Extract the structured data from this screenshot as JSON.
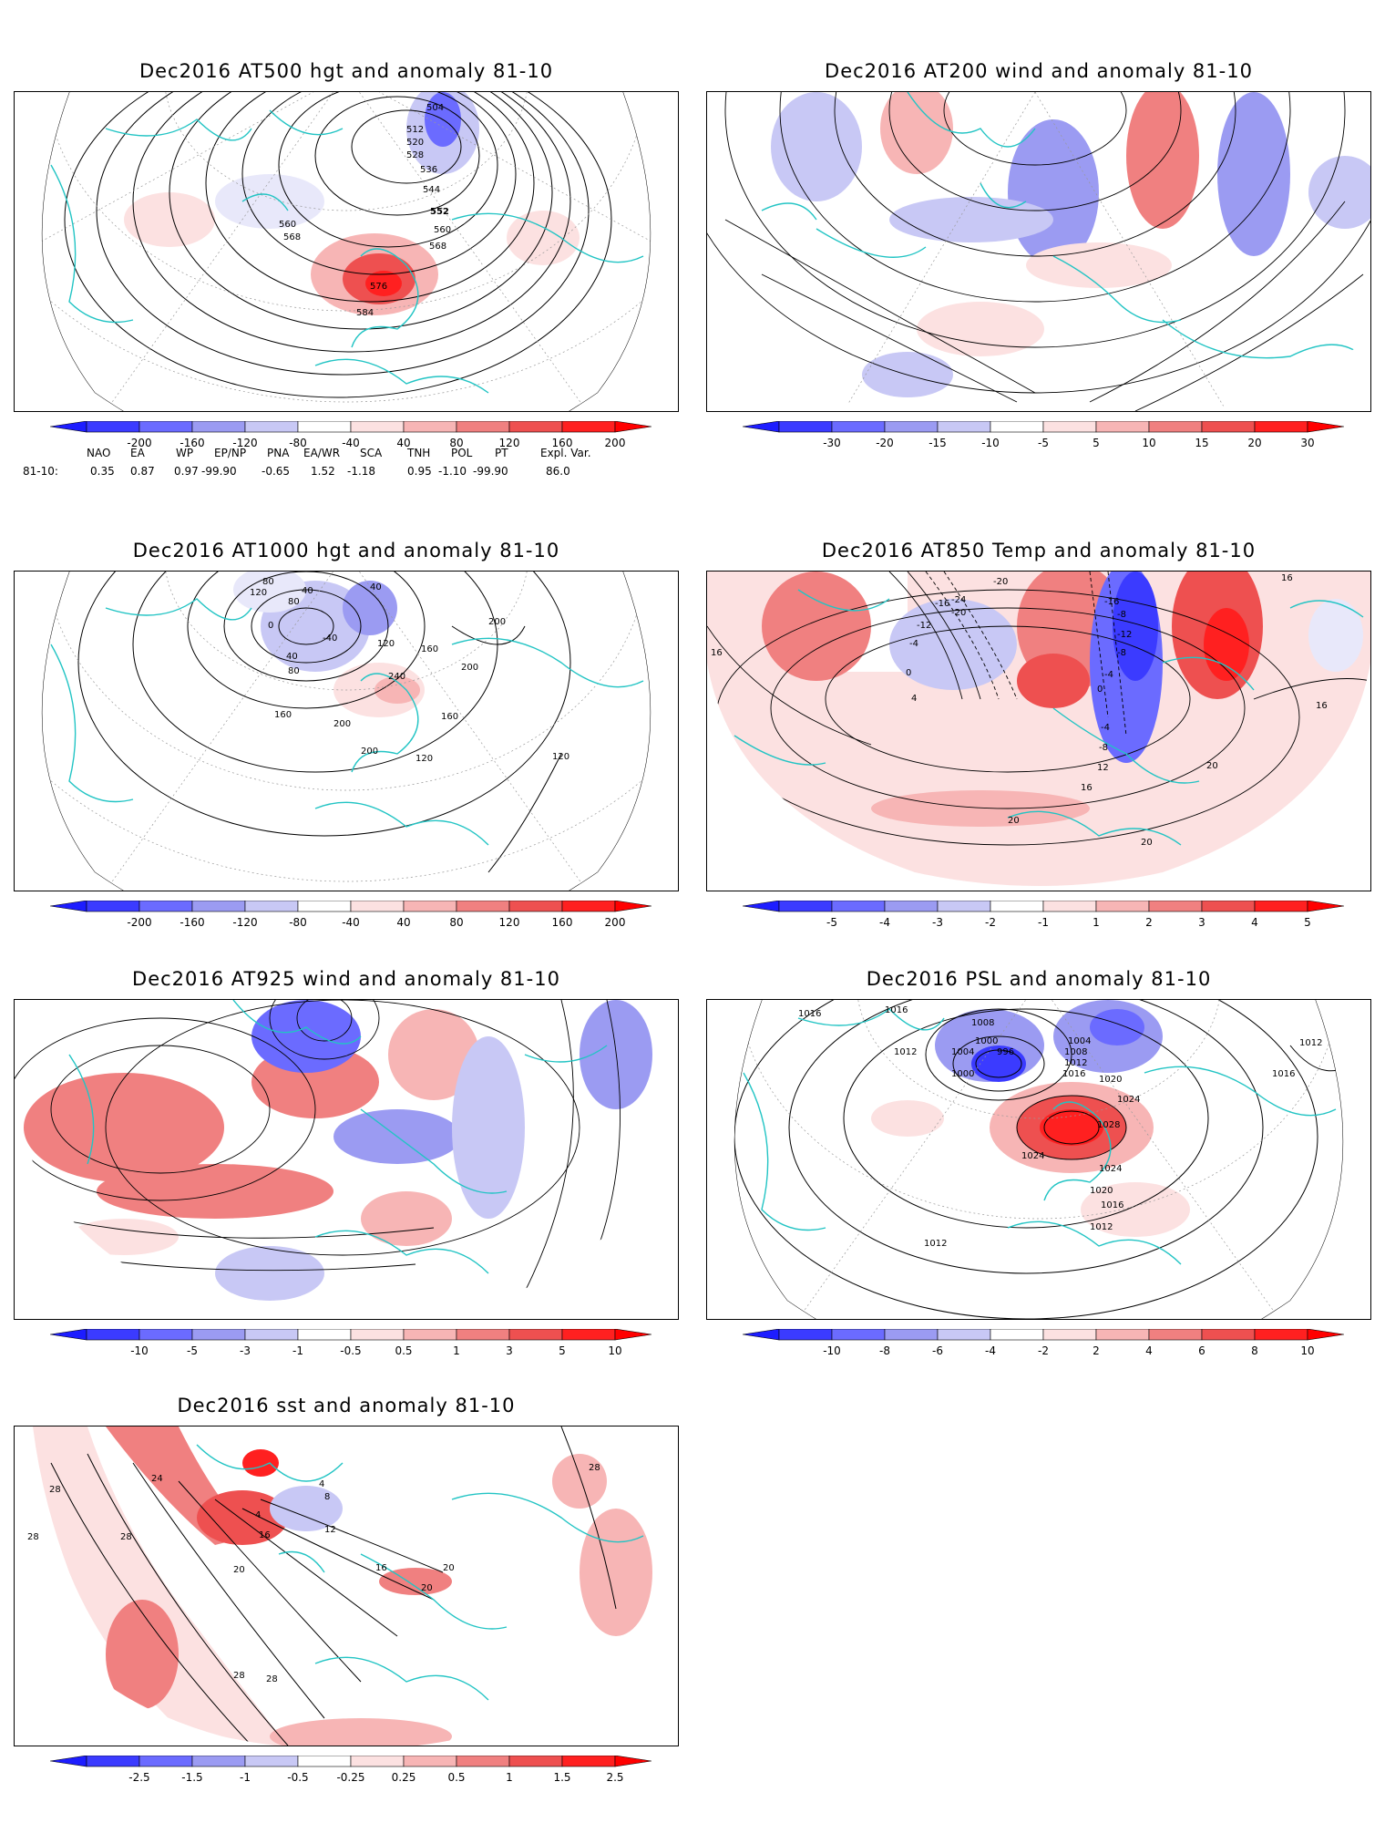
{
  "panels": [
    {
      "id": "p1",
      "title": "Dec2016 AT500 hgt and anomaly 81-10",
      "contour_labels": [
        "504",
        "512",
        "520",
        "528",
        "536",
        "544",
        "552",
        "560",
        "568",
        "560",
        "568",
        "576",
        "584"
      ],
      "colorbar": {
        "ticks": [
          "-200",
          "-160",
          "-120",
          "-80",
          "-40",
          "40",
          "80",
          "120",
          "160",
          "200"
        ]
      },
      "anomaly_palette": [
        "#3b3bff",
        "#6b6bff",
        "#9b9bf2",
        "#c8c8f5",
        "#e8e8fa",
        "#ffffff",
        "#fce1e1",
        "#f7b5b5",
        "#f08080",
        "#ee5050",
        "#ff2020"
      ]
    },
    {
      "id": "p2",
      "title": "Dec2016 AT200 wind and anomaly 81-10",
      "contour_labels": [],
      "colorbar": {
        "ticks": [
          "-30",
          "-20",
          "-15",
          "-10",
          "-5",
          "5",
          "10",
          "15",
          "20",
          "30"
        ]
      }
    },
    {
      "id": "p3",
      "title": "Dec2016 AT1000 hgt and anomaly 81-10",
      "contour_labels": [
        "120",
        "80",
        "40",
        "80",
        "40",
        "0",
        "-40",
        "40",
        "80",
        "120",
        "160",
        "240",
        "160",
        "200",
        "200",
        "200",
        "160",
        "120",
        "200",
        "120"
      ],
      "colorbar": {
        "ticks": [
          "-200",
          "-160",
          "-120",
          "-80",
          "-40",
          "40",
          "80",
          "120",
          "160",
          "200"
        ]
      }
    },
    {
      "id": "p4",
      "title": "Dec2016 AT850 Temp and anomaly 81-10",
      "contour_labels": [
        "-20",
        "-16",
        "-24",
        "-16",
        "-20",
        "-12",
        "-8",
        "-12",
        "-8",
        "-4",
        "0",
        "-4",
        "0",
        "4",
        "16",
        "16",
        "16",
        "20",
        "-4",
        "-8",
        "12",
        "16",
        "20",
        "20"
      ],
      "colorbar": {
        "ticks": [
          "-5",
          "-4",
          "-3",
          "-2",
          "-1",
          "1",
          "2",
          "3",
          "4",
          "5"
        ]
      }
    },
    {
      "id": "p5",
      "title": "Dec2016 AT925 wind and anomaly 81-10",
      "contour_labels": [],
      "colorbar": {
        "ticks": [
          "-10",
          "-5",
          "-3",
          "-1",
          "-0.5",
          "0.5",
          "1",
          "3",
          "5",
          "10"
        ]
      }
    },
    {
      "id": "p6",
      "title": "Dec2016 PSL and anomaly 81-10",
      "contour_labels": [
        "1016",
        "1016",
        "1008",
        "1012",
        "1004",
        "1000",
        "996",
        "1000",
        "1004",
        "1008",
        "1012",
        "1016",
        "1020",
        "1024",
        "1028",
        "1024",
        "1024",
        "1020",
        "1016",
        "1012",
        "1012",
        "1012",
        "1016"
      ],
      "colorbar": {
        "ticks": [
          "-10",
          "-8",
          "-6",
          "-4",
          "-2",
          "2",
          "4",
          "6",
          "8",
          "10"
        ]
      }
    },
    {
      "id": "p7",
      "title": "Dec2016 sst and anomaly 81-10",
      "contour_labels": [
        "28",
        "28",
        "28",
        "24",
        "20",
        "16",
        "12",
        "4",
        "8",
        "4",
        "16",
        "20",
        "20",
        "28",
        "28",
        "28"
      ],
      "colorbar": {
        "ticks": [
          "-2.5",
          "-1.5",
          "-1",
          "-0.5",
          "-0.25",
          "0.25",
          "0.5",
          "1",
          "1.5",
          "2.5"
        ]
      }
    }
  ],
  "teleconnections": {
    "headers": [
      "NAO",
      "EA",
      "WP",
      "EP/NP",
      "PNA",
      "EA/WR",
      "SCA",
      "TNH",
      "POL",
      "PT",
      "Expl. Var."
    ],
    "row_label": "81-10:",
    "values": [
      "0.35",
      "0.87",
      "0.97",
      "-99.90",
      "-0.65",
      "1.52",
      "-1.18",
      "0.95",
      "-1.10",
      "-99.90",
      "86.0"
    ]
  }
}
